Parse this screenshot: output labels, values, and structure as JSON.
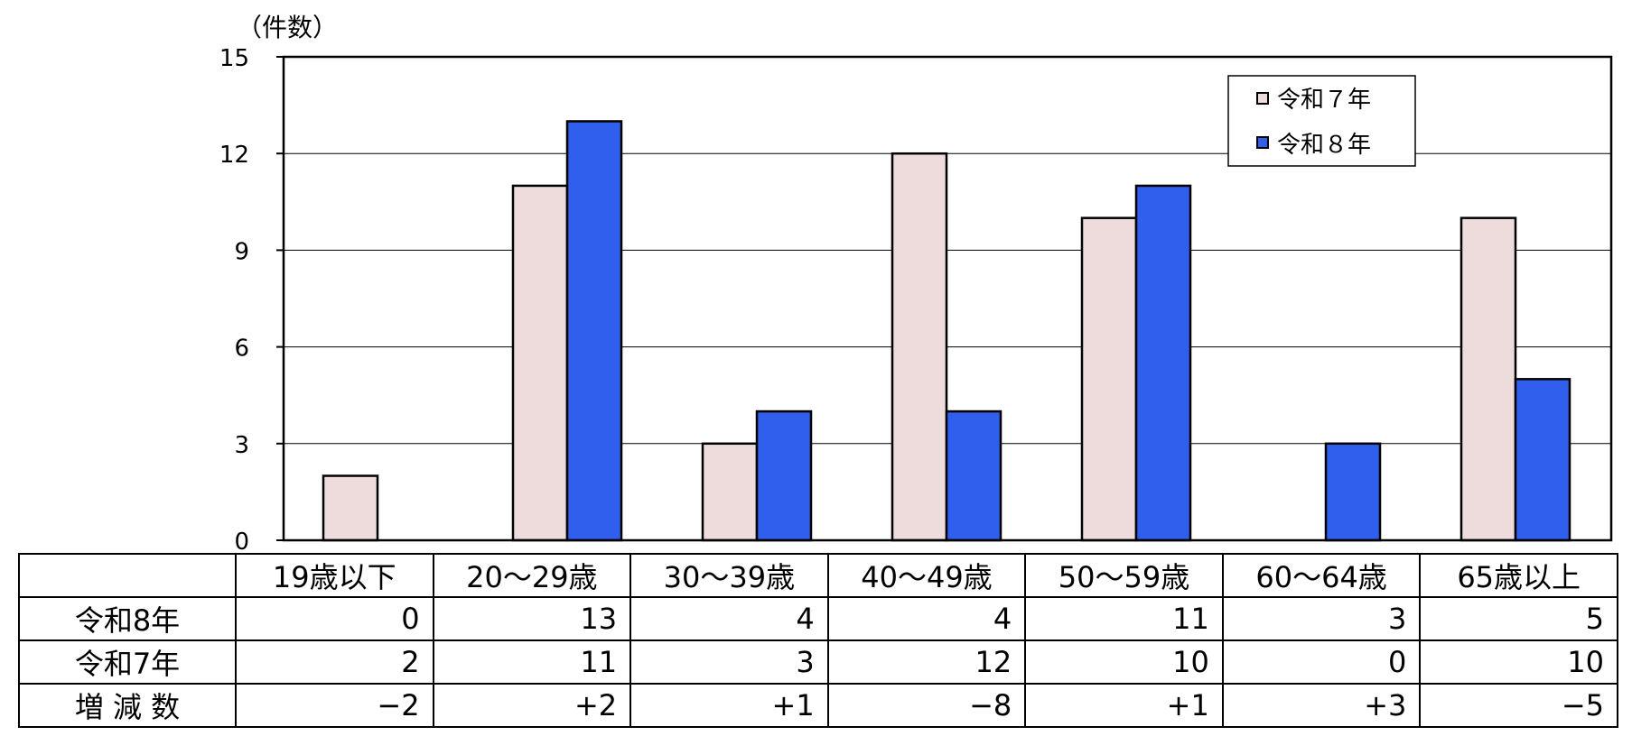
{
  "chart_data": {
    "type": "bar",
    "unit_label": "（件数）",
    "categories": [
      "19歳以下",
      "20～29歳",
      "30～39歳",
      "40～49歳",
      "50～59歳",
      "60～64歳",
      "65歳以上"
    ],
    "series": [
      {
        "name": "令和７年",
        "values": [
          2,
          11,
          3,
          12,
          10,
          0,
          10
        ],
        "color": "#eedcdc"
      },
      {
        "name": "令和８年",
        "values": [
          0,
          13,
          4,
          4,
          11,
          3,
          5
        ],
        "color": "#2f5fec"
      }
    ],
    "ylim": [
      0,
      15
    ],
    "yticks": [
      "0",
      "3",
      "6",
      "9",
      "12",
      "15"
    ],
    "grid": true,
    "legend_position": "top-right"
  },
  "table": {
    "header": [
      "19歳以下",
      "20～29歳",
      "30～39歳",
      "40～49歳",
      "50～59歳",
      "60～64歳",
      "65歳以上"
    ],
    "rows": [
      {
        "label": "令和8年",
        "values": [
          "0",
          "13",
          "4",
          "4",
          "11",
          "3",
          "5"
        ]
      },
      {
        "label": "令和7年",
        "values": [
          "2",
          "11",
          "3",
          "12",
          "10",
          "0",
          "10"
        ]
      },
      {
        "label": "増 減 数",
        "values": [
          "−2",
          "+2",
          "+1",
          "−8",
          "+1",
          "+3",
          "−5"
        ]
      }
    ]
  }
}
